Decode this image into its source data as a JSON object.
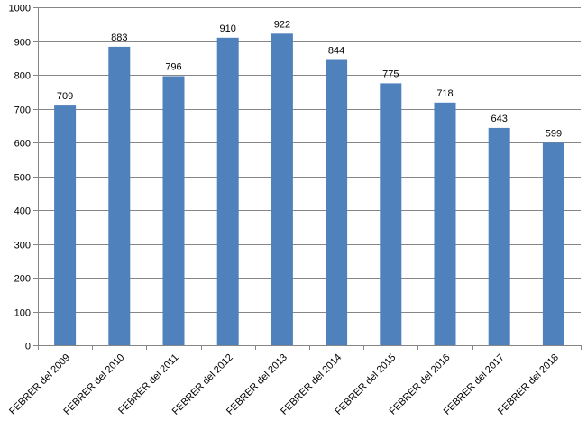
{
  "chart_data": {
    "type": "bar",
    "title": "",
    "xlabel": "",
    "ylabel": "",
    "categories": [
      "FEBRER del 2009",
      "FEBRER del 2010",
      "FEBRER del 2011",
      "FEBRER del 2012",
      "FEBRER del 2013",
      "FEBRER del 2014",
      "FEBRER del 2015",
      "FEBRER del 2016",
      "FEBRER del 2017",
      "FEBRER del 2018"
    ],
    "values": [
      709,
      883,
      796,
      910,
      922,
      844,
      775,
      718,
      643,
      599
    ],
    "ylim": [
      0,
      1000
    ],
    "yticks": [
      0,
      100,
      200,
      300,
      400,
      500,
      600,
      700,
      800,
      900,
      1000
    ],
    "grid": true,
    "legend": "none",
    "bar_color": "#4f81bd",
    "grid_color": "#868686"
  }
}
